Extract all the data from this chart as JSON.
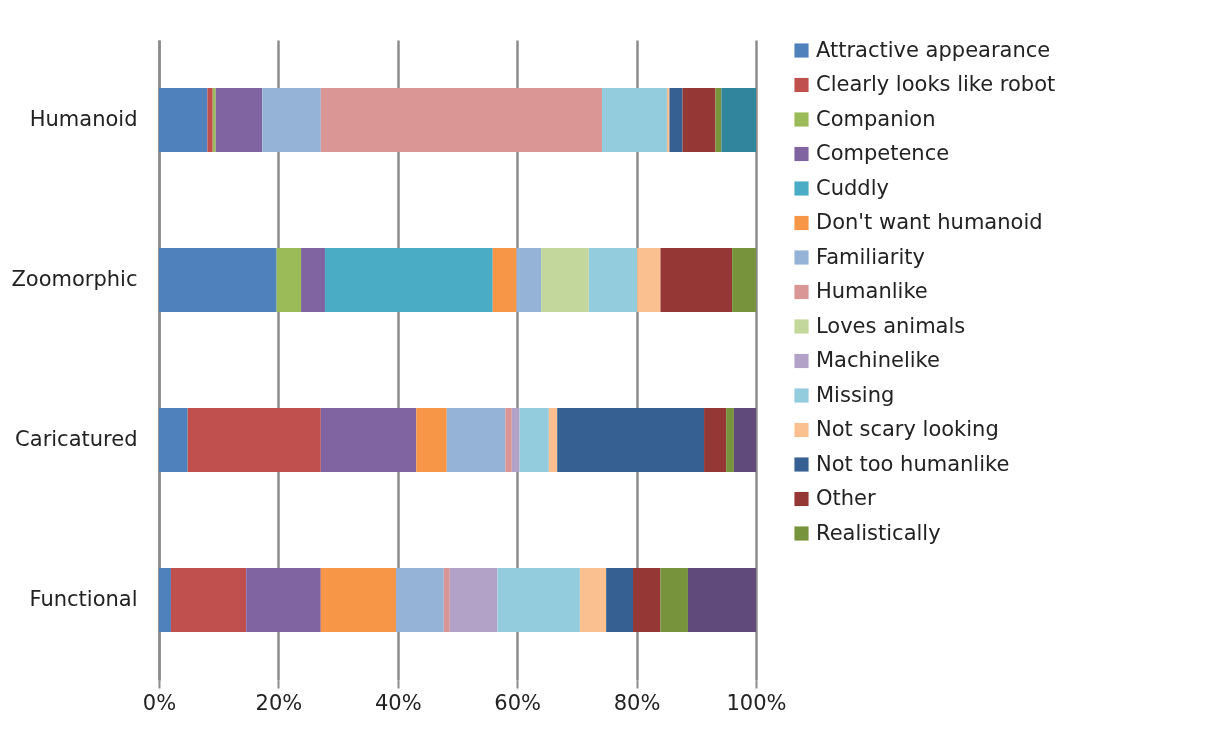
{
  "chart_data": {
    "type": "bar",
    "orientation": "horizontal",
    "stacked": true,
    "categories": [
      "Humanoid",
      "Zoomorphic",
      "Caricatured",
      "Functional"
    ],
    "series": [
      {
        "name": "Attractive appearance",
        "color": "#4f81bd",
        "values": [
          8.1,
          19.7,
          4.8,
          2.0
        ]
      },
      {
        "name": "Clearly looks like robot",
        "color": "#c0504d",
        "values": [
          0.9,
          null,
          22.3,
          12.6
        ]
      },
      {
        "name": "Companion",
        "color": "#9bbb59",
        "values": [
          0.5,
          4.1,
          null,
          null
        ]
      },
      {
        "name": "Competence",
        "color": "#8064a2",
        "values": [
          7.8,
          4.0,
          16.0,
          12.5
        ]
      },
      {
        "name": "Cuddly",
        "color": "#4bacc6",
        "values": [
          null,
          28.1,
          null,
          null
        ]
      },
      {
        "name": "Don't want humanoid",
        "color": "#f79646",
        "values": [
          null,
          4.0,
          5.1,
          12.6
        ]
      },
      {
        "name": "Familiarity",
        "color": "#95b3d7",
        "values": [
          9.8,
          4.1,
          9.8,
          8.0
        ]
      },
      {
        "name": "Humanlike",
        "color": "#d99694",
        "values": [
          47.1,
          null,
          1.1,
          1.0
        ]
      },
      {
        "name": "Loves animals",
        "color": "#c3d69b",
        "values": [
          null,
          8.0,
          null,
          null
        ]
      },
      {
        "name": "Machinelike",
        "color": "#b3a2c7",
        "values": [
          null,
          null,
          1.3,
          8.0
        ]
      },
      {
        "name": "Missing",
        "color": "#93cddd",
        "values": [
          10.9,
          8.1,
          4.9,
          13.8
        ]
      },
      {
        "name": "Not scary looking",
        "color": "#fac08f",
        "values": [
          0.4,
          3.9,
          1.4,
          4.4
        ]
      },
      {
        "name": "Not too humanlike",
        "color": "#376092",
        "values": [
          2.2,
          null,
          24.6,
          4.5
        ]
      },
      {
        "name": "Other",
        "color": "#953735",
        "values": [
          5.5,
          12.0,
          3.7,
          4.6
        ]
      },
      {
        "name": "Realistically",
        "color": "#77933c",
        "values": [
          1.0,
          4.0,
          1.3,
          4.6
        ]
      },
      {
        "color": "#604a7b",
        "values": [
          null,
          null,
          3.7,
          11.4
        ]
      },
      {
        "color": "#31859c",
        "values": [
          5.8,
          null,
          null,
          null
        ]
      }
    ],
    "xlim": [
      0,
      100
    ],
    "xticks": [
      {
        "value": 0,
        "label": "0%"
      },
      {
        "value": 20,
        "label": "20%"
      },
      {
        "value": 40,
        "label": "40%"
      },
      {
        "value": 60,
        "label": "60%"
      },
      {
        "value": 80,
        "label": "80%"
      },
      {
        "value": 100,
        "label": "100%"
      }
    ],
    "grid": "x",
    "legend": "right"
  }
}
